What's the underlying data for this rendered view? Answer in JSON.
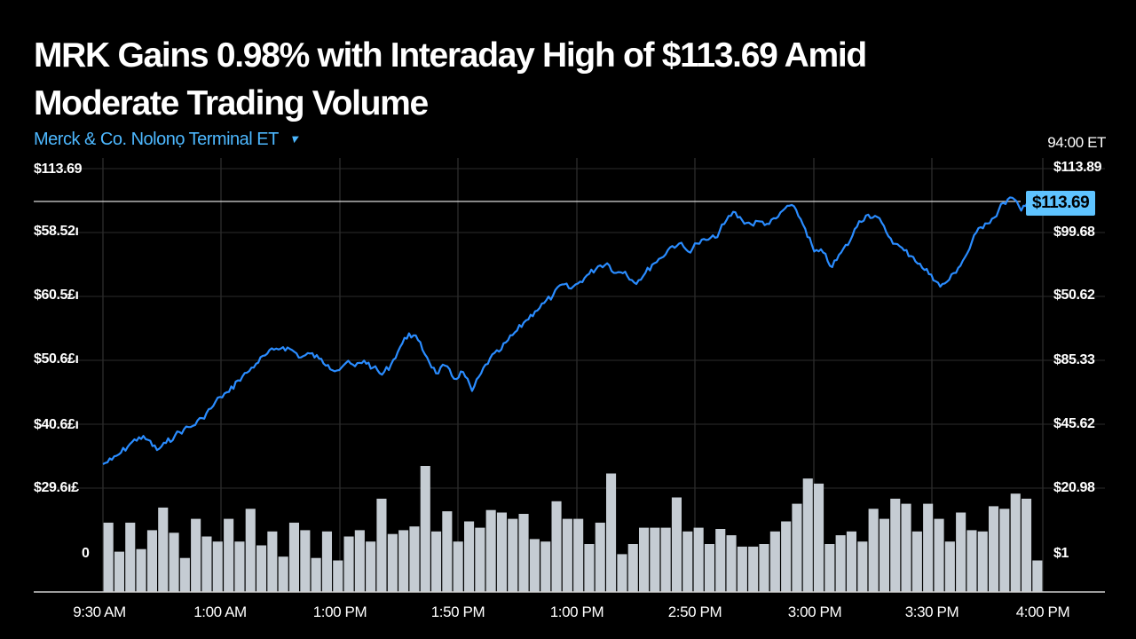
{
  "header": {
    "title": "MRK Gains 0.98% with Interaday High of $113.69 Amid Moderate Trading Volume",
    "subtitle": "Merck & Co. Nolonọ Terminal ET",
    "timezone": "94:00 ET"
  },
  "price_badge": "$113.69",
  "colors": {
    "background": "#000000",
    "price_line": "#2a8cff",
    "volume_bars": "#c5ccd3",
    "accent": "#5ec3ff"
  },
  "icons": {
    "dropdown": "caret-down-icon"
  },
  "chart_data": {
    "type": "line",
    "title": "MRK Gains 0.98% with Interaday High of $113.69 Amid Moderate Trading Volume",
    "left_axis_labels": [
      "$113.69",
      "$58.52ı",
      "$60.5£ı",
      "$50.6£ı",
      "$40.6£ı",
      "$29.6ı£",
      "0"
    ],
    "right_axis_labels": [
      "$113.89",
      "$99.68",
      "$50.62",
      "$85.33",
      "$45.62",
      "$20.98",
      "$1"
    ],
    "x_tick_labels": [
      "9:30 AM",
      "1:00 AM",
      "1:00 PM",
      "1:50 PM",
      "1:00 PM",
      "2:50 PM",
      "3:00 PM",
      "3:30 PM",
      "4:00 PM"
    ],
    "grid": true,
    "reference_line": 113.69,
    "intraday_high": 113.69,
    "price_series": {
      "values": [
        29.6,
        31.0,
        33.2,
        35.9,
        38.0,
        37.2,
        34.0,
        36.2,
        38.6,
        40.5,
        41.6,
        44.0,
        47.0,
        50.6,
        52.2,
        55.8,
        58.2,
        61.0,
        63.6,
        65.4,
        66.2,
        65.3,
        63.0,
        64.2,
        62.6,
        60.6,
        58.9,
        61.3,
        60.2,
        62.0,
        59.8,
        57.6,
        60.8,
        66.2,
        70.5,
        68.4,
        63.0,
        58.0,
        60.4,
        56.3,
        58.4,
        52.5,
        58.0,
        62.7,
        64.8,
        68.4,
        71.4,
        74.6,
        77.4,
        80.0,
        82.4,
        85.8,
        84.5,
        86.7,
        89.1,
        91.5,
        92.4,
        89.4,
        89.8,
        86.4,
        88.4,
        92.0,
        94.1,
        97.4,
        98.6,
        96.1,
        98.6,
        99.7,
        100.4,
        104.7,
        108.5,
        105.9,
        104.6,
        105.5,
        104.7,
        107.0,
        110.4,
        109.1,
        103.2,
        96.1,
        95.8,
        91.2,
        95.8,
        99.5,
        105.6,
        107.6,
        106.9,
        102.2,
        98.5,
        96.4,
        94.4,
        91.0,
        88.9,
        85.1,
        87.3,
        91.0,
        95.5,
        102.0,
        104.9,
        106.7,
        111.3,
        112.9,
        108.9,
        113.69,
        110.5
      ]
    },
    "volume_series": {
      "values": [
        0.55,
        0.32,
        0.55,
        0.34,
        0.49,
        0.67,
        0.47,
        0.27,
        0.58,
        0.44,
        0.4,
        0.58,
        0.4,
        0.66,
        0.37,
        0.48,
        0.28,
        0.55,
        0.49,
        0.27,
        0.48,
        0.25,
        0.44,
        0.49,
        0.4,
        0.74,
        0.46,
        0.49,
        0.52,
        1.0,
        0.48,
        0.64,
        0.4,
        0.56,
        0.51,
        0.65,
        0.63,
        0.58,
        0.62,
        0.42,
        0.4,
        0.72,
        0.58,
        0.58,
        0.38,
        0.55,
        0.94,
        0.3,
        0.38,
        0.51,
        0.51,
        0.51,
        0.75,
        0.48,
        0.51,
        0.38,
        0.5,
        0.45,
        0.36,
        0.36,
        0.38,
        0.48,
        0.56,
        0.7,
        0.9,
        0.86,
        0.38,
        0.45,
        0.48,
        0.4,
        0.66,
        0.58,
        0.74,
        0.7,
        0.48,
        0.7,
        0.58,
        0.4,
        0.63,
        0.49,
        0.48,
        0.68,
        0.66,
        0.78,
        0.74,
        0.25
      ]
    }
  }
}
